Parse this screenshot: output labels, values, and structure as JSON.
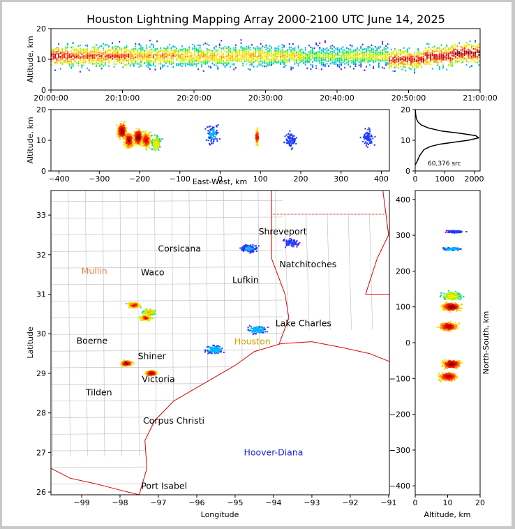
{
  "title": "Houston Lightning Mapping Array 2000-2100 UTC June 14, 2025",
  "colors": {
    "frame_border": "#c8c8c8",
    "state_border": "#dd0000",
    "coast": "#dd0000",
    "county": "#bbbbbb"
  },
  "chart_data": [
    {
      "id": "time-height",
      "type": "heatmap",
      "xlabel": "",
      "ylabel": "Altitude, km",
      "xticks": [
        "20:00:00",
        "20:10:00",
        "20:20:00",
        "20:30:00",
        "20:40:00",
        "20:50:00",
        "21:00:00"
      ],
      "yticks": [
        "0",
        "10",
        "20"
      ],
      "xlim_minutes": [
        0,
        60
      ],
      "ylim": [
        0,
        20
      ],
      "cells": [
        {
          "t": 0,
          "z": 11,
          "v": 0.95
        },
        {
          "t": 2,
          "z": 11,
          "v": 0.9
        },
        {
          "t": 4,
          "z": 11,
          "v": 0.85
        },
        {
          "t": 8,
          "z": 11,
          "v": 0.85
        },
        {
          "t": 14,
          "z": 11,
          "v": 0.75
        },
        {
          "t": 20,
          "z": 11,
          "v": 0.7
        },
        {
          "t": 26,
          "z": 11,
          "v": 0.7
        },
        {
          "t": 32,
          "z": 11,
          "v": 0.65
        },
        {
          "t": 38,
          "z": 11,
          "v": 0.55
        },
        {
          "t": 44,
          "z": 11,
          "v": 0.6
        },
        {
          "t": 50,
          "z": 10,
          "v": 0.9
        },
        {
          "t": 54,
          "z": 11,
          "v": 0.95
        },
        {
          "t": 58,
          "z": 12,
          "v": 1.0
        }
      ]
    },
    {
      "id": "ew-height",
      "type": "heatmap",
      "xlabel": "East-West, km",
      "ylabel": "Altitude, km",
      "xticks": [
        "−400",
        "−300",
        "−200",
        "−100",
        "0",
        "100",
        "200",
        "300",
        "400"
      ],
      "yticks": [
        "0",
        "10",
        "20"
      ],
      "xlim": [
        -420,
        420
      ],
      "ylim": [
        0,
        20
      ],
      "cells": [
        {
          "x": -245,
          "z": 13,
          "v": 1.0
        },
        {
          "x": -228,
          "z": 10,
          "v": 0.95
        },
        {
          "x": -205,
          "z": 11,
          "v": 1.0
        },
        {
          "x": -185,
          "z": 10,
          "v": 0.9
        },
        {
          "x": -160,
          "z": 9,
          "v": 0.6
        },
        {
          "x": -20,
          "z": 12,
          "v": 0.25
        },
        {
          "x": 90,
          "z": 11,
          "v": 0.85
        },
        {
          "x": 175,
          "z": 10,
          "v": 0.2
        },
        {
          "x": 365,
          "z": 11,
          "v": 0.2
        }
      ]
    },
    {
      "id": "altitude-histogram",
      "type": "line",
      "annotation": "60,376 src",
      "xticks": [
        "0",
        "1000",
        "2000"
      ],
      "yticks": [
        "0",
        "10",
        "20"
      ],
      "xlim": [
        0,
        2200
      ],
      "ylim": [
        0,
        20
      ],
      "x": [
        0,
        60,
        150,
        300,
        520,
        820,
        1250,
        1800,
        2150,
        2050,
        1500,
        900,
        450,
        200,
        90,
        40,
        15,
        5
      ],
      "y": [
        2,
        3,
        5,
        7,
        8,
        8.7,
        9.3,
        10.0,
        10.8,
        11.5,
        12.3,
        13.0,
        14.0,
        15.0,
        16.0,
        17.0,
        18.5,
        20
      ]
    },
    {
      "id": "plan-view",
      "type": "scatter",
      "xlabel": "Longitude",
      "ylabel": "Latitude",
      "xticks": [
        "−99",
        "−98",
        "−97",
        "−96",
        "−95",
        "−94",
        "−93",
        "−92",
        "−91"
      ],
      "yticks": [
        "26",
        "27",
        "28",
        "29",
        "30",
        "31",
        "32",
        "33"
      ],
      "xlim": [
        -99.8,
        -90.98
      ],
      "ylim": [
        25.93,
        33.62
      ],
      "clusters": [
        {
          "lon": -97.85,
          "lat": 29.25,
          "v": 1.0
        },
        {
          "lon": -97.2,
          "lat": 29.0,
          "v": 1.0
        },
        {
          "lon": -97.65,
          "lat": 30.72,
          "v": 0.9
        },
        {
          "lon": -97.35,
          "lat": 30.4,
          "v": 0.85
        },
        {
          "lon": -97.25,
          "lat": 30.55,
          "v": 0.7
        },
        {
          "lon": -95.55,
          "lat": 29.6,
          "v": 0.3
        },
        {
          "lon": -94.45,
          "lat": 30.1,
          "v": 0.3
        },
        {
          "lon": -94.65,
          "lat": 32.15,
          "v": 0.25
        },
        {
          "lon": -93.55,
          "lat": 32.3,
          "v": 0.15
        }
      ],
      "cities": [
        {
          "name": "Shreveport",
          "lon": -93.76,
          "lat": 32.58,
          "color": "#000000"
        },
        {
          "name": "Corsicana",
          "lon": -96.45,
          "lat": 32.15,
          "color": "#000000"
        },
        {
          "name": "Mullin",
          "lon": -98.67,
          "lat": 31.58,
          "color": "#e8804a"
        },
        {
          "name": "Waco",
          "lon": -97.15,
          "lat": 31.55,
          "color": "#000000"
        },
        {
          "name": "Natchitoches",
          "lon": -93.1,
          "lat": 31.75,
          "color": "#000000"
        },
        {
          "name": "Lufkin",
          "lon": -94.73,
          "lat": 31.35,
          "color": "#000000"
        },
        {
          "name": "Lake Charles",
          "lon": -93.22,
          "lat": 30.26,
          "color": "#000000"
        },
        {
          "name": "Boerne",
          "lon": -98.73,
          "lat": 29.82,
          "color": "#000000"
        },
        {
          "name": "Shiner",
          "lon": -97.17,
          "lat": 29.43,
          "color": "#000000"
        },
        {
          "name": "Victoria",
          "lon": -97.0,
          "lat": 28.85,
          "color": "#000000"
        },
        {
          "name": "Tilden",
          "lon": -98.55,
          "lat": 28.51,
          "color": "#000000"
        },
        {
          "name": "Corpus Christi",
          "lon": -96.6,
          "lat": 27.8,
          "color": "#000000"
        },
        {
          "name": "Hoover-Diana",
          "lon": -94.0,
          "lat": 27.0,
          "color": "#2222dd"
        },
        {
          "name": "Port Isabel",
          "lon": -96.85,
          "lat": 26.15,
          "color": "#000000"
        },
        {
          "name": "Houston",
          "lon": -94.55,
          "lat": 29.8,
          "color": "#d9a000"
        }
      ]
    },
    {
      "id": "height-ns",
      "type": "heatmap",
      "xlabel": "Altitude, km",
      "ylabel": "North-South, km",
      "xticks": [
        "0",
        "10",
        "20"
      ],
      "yticks": [
        "−400",
        "−300",
        "−200",
        "−100",
        "0",
        "100",
        "200",
        "300",
        "400"
      ],
      "xlim": [
        0,
        20
      ],
      "ylim": [
        -425,
        425
      ],
      "cells": [
        {
          "z": 11,
          "ns": 100,
          "v": 1.0
        },
        {
          "z": 10,
          "ns": 45,
          "v": 0.95
        },
        {
          "z": 11,
          "ns": -60,
          "v": 1.0
        },
        {
          "z": 10,
          "ns": -95,
          "v": 0.95
        },
        {
          "z": 11,
          "ns": 130,
          "v": 0.6
        },
        {
          "z": 11,
          "ns": 262,
          "v": 0.3
        },
        {
          "z": 12,
          "ns": 310,
          "v": 0.15
        }
      ]
    }
  ]
}
